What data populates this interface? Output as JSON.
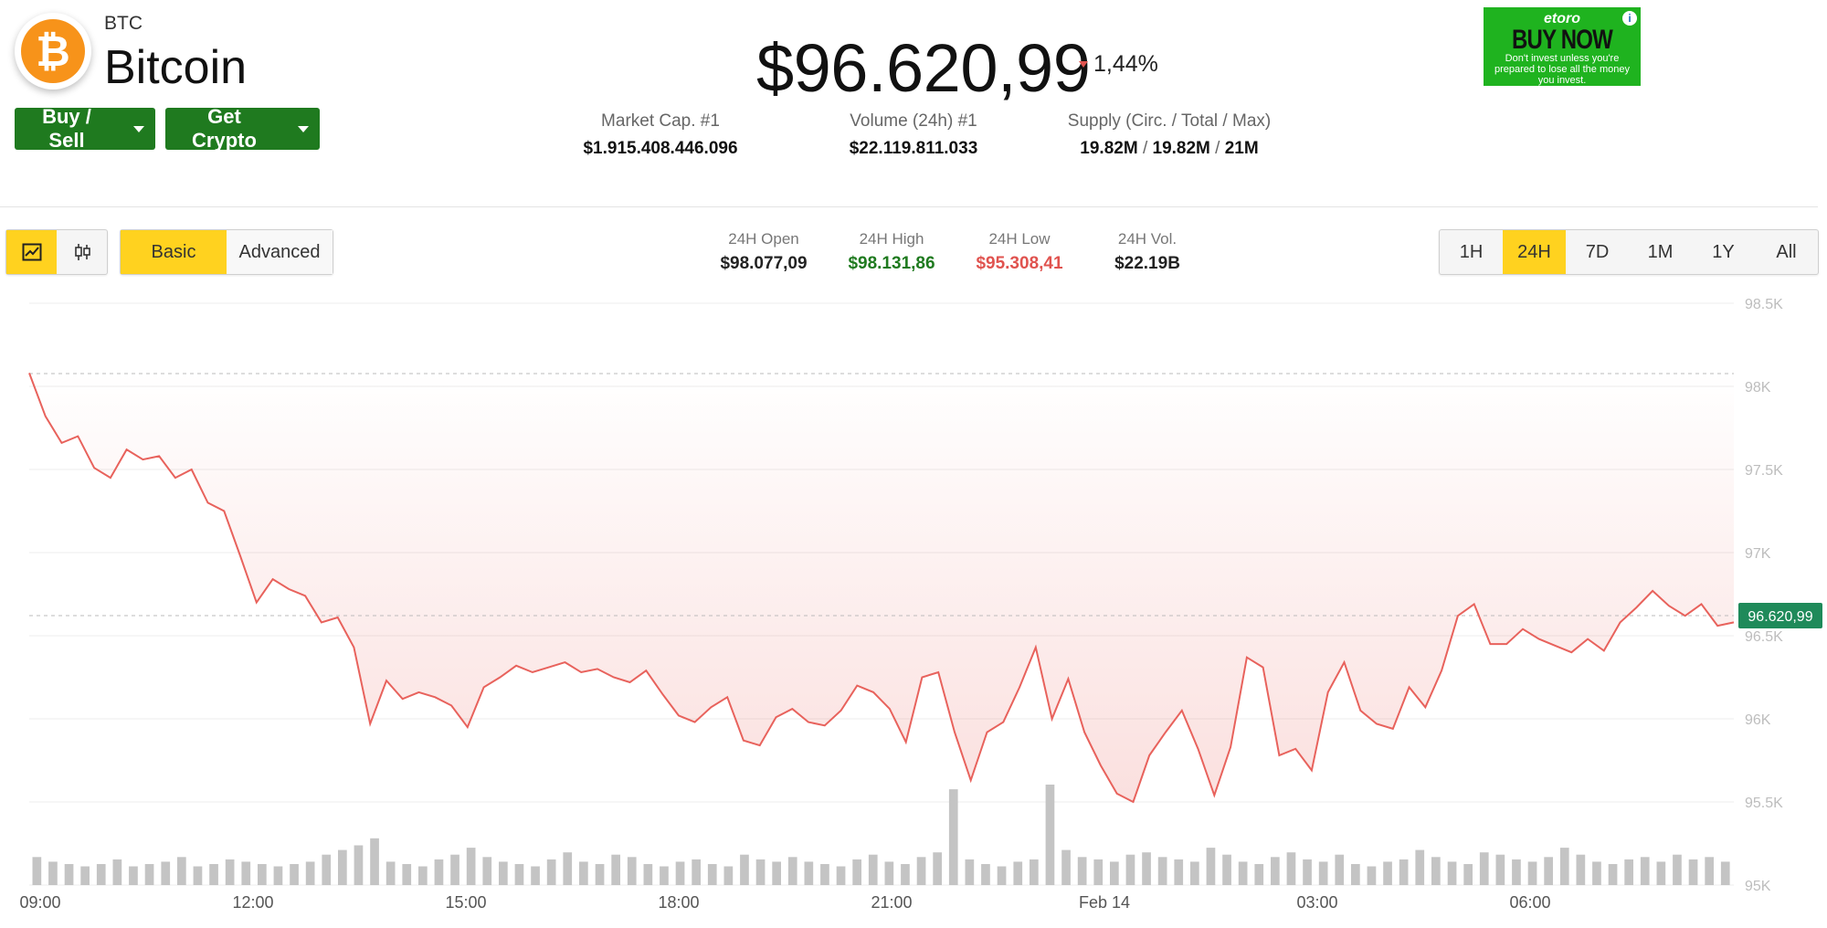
{
  "coin": {
    "symbol": "BTC",
    "name": "Bitcoin",
    "logo_icon": "bitcoin-icon",
    "logo_glyph": "₿"
  },
  "buttons": {
    "buy_sell": "Buy / Sell",
    "get_crypto": "Get Crypto"
  },
  "price": {
    "value": "$96.620,99",
    "change": "1,44%",
    "direction": "down"
  },
  "stats": {
    "market_cap": {
      "label": "Market Cap. #1",
      "value": "$1.915.408.446.096"
    },
    "volume": {
      "label": "Volume (24h) #1",
      "value": "$22.119.811.033"
    },
    "supply": {
      "label": "Supply (Circ. / Total / Max)",
      "circ": "19.82M",
      "total": "19.82M",
      "max": "21M"
    }
  },
  "ad": {
    "brand": "etoro",
    "cta": "BUY NOW",
    "disclaimer": "Don't invest unless you're prepared to lose all the money you invest."
  },
  "toolbar": {
    "chart_types": [
      "line-chart-icon",
      "candlestick-icon"
    ],
    "modes": [
      "Basic",
      "Advanced"
    ],
    "active_mode": "Basic",
    "ranges": [
      "1H",
      "24H",
      "7D",
      "1M",
      "1Y",
      "All"
    ],
    "active_range": "24H"
  },
  "ohlc": {
    "open": {
      "label": "24H Open",
      "value": "$98.077,09"
    },
    "high": {
      "label": "24H High",
      "value": "$98.131,86"
    },
    "low": {
      "label": "24H Low",
      "value": "$95.308,41"
    },
    "vol": {
      "label": "24H Vol.",
      "value": "$22.19B"
    }
  },
  "colors": {
    "up": "#1f8a1f",
    "down": "#e0534f",
    "accent": "#ffd21f",
    "line": "#e8625c",
    "volume": "#c4c4c4",
    "price_tag": "#1f8a5a"
  },
  "chart_data": {
    "type": "line",
    "x_ticks": [
      "09:00",
      "12:00",
      "15:00",
      "18:00",
      "21:00",
      "Feb 14",
      "03:00",
      "06:00"
    ],
    "y_ticks": [
      "98.5K",
      "98K",
      "97.5K",
      "97K",
      "96.5K",
      "96K",
      "95.5K",
      "95K"
    ],
    "ylim": [
      95000,
      98500
    ],
    "hours_span": 24,
    "open_reference": 98077,
    "current_label": "96.620,99",
    "current_value": 96621,
    "series": [
      {
        "values": [
          98080,
          97820,
          97660,
          97700,
          97510,
          97450,
          97620,
          97560,
          97580,
          97450,
          97500,
          97300,
          97250,
          96980,
          96700,
          96840,
          96780,
          96740,
          96580,
          96610,
          96430,
          95970,
          96230,
          96120,
          96160,
          96130,
          96080,
          95950,
          96190,
          96250,
          96320,
          96280,
          96310,
          96340,
          96280,
          96300,
          96250,
          96220,
          96290,
          96150,
          96020,
          95980,
          96070,
          96130,
          95870,
          95840,
          96010,
          96060,
          95980,
          95960,
          96050,
          96200,
          96160,
          96060,
          95860,
          96250,
          96280,
          95920,
          95630,
          95920,
          95980,
          96190,
          96430,
          96000,
          96240,
          95920,
          95720,
          95550,
          95500,
          95780,
          95920,
          96050,
          95820,
          95540,
          95830,
          96370,
          96310,
          95780,
          95820,
          95690,
          96160,
          96340,
          96050,
          95970,
          95940,
          96190,
          96070,
          96290,
          96620,
          96690,
          96450,
          96450,
          96540,
          96480,
          96440,
          96400,
          96480,
          96410,
          96580,
          96670,
          96770,
          96680,
          96620,
          96690,
          96560,
          96580
        ]
      },
      {
        "name": "volume",
        "values": [
          12,
          10,
          9,
          8,
          9,
          11,
          8,
          9,
          10,
          12,
          8,
          9,
          11,
          10,
          9,
          8,
          9,
          10,
          13,
          15,
          17,
          20,
          10,
          9,
          8,
          11,
          13,
          16,
          12,
          10,
          9,
          8,
          11,
          14,
          10,
          9,
          13,
          12,
          9,
          8,
          10,
          11,
          9,
          8,
          13,
          11,
          10,
          12,
          10,
          9,
          8,
          11,
          13,
          10,
          9,
          12,
          14,
          41,
          11,
          9,
          8,
          10,
          11,
          43,
          15,
          12,
          11,
          10,
          13,
          14,
          12,
          11,
          10,
          16,
          13,
          10,
          9,
          12,
          14,
          11,
          10,
          13,
          9,
          8,
          10,
          11,
          15,
          12,
          10,
          9,
          14,
          13,
          11,
          10,
          12,
          16,
          13,
          10,
          9,
          11,
          12,
          10,
          13,
          11,
          12,
          10
        ]
      }
    ]
  }
}
